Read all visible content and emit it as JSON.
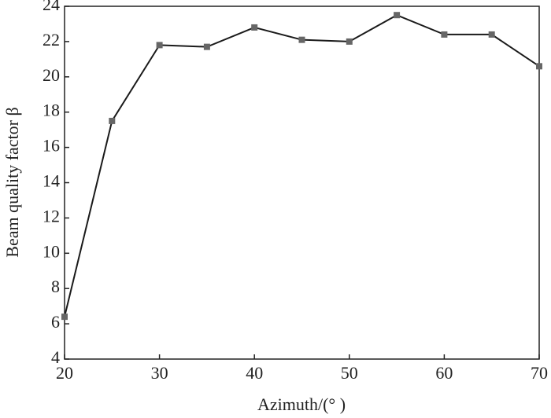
{
  "chart_data": {
    "type": "line",
    "x_label": "Azimuth/(°  )",
    "y_label": "Beam quality factor β",
    "x": [
      20,
      25,
      30,
      35,
      40,
      45,
      50,
      55,
      60,
      65,
      70
    ],
    "series": [
      {
        "color": "#1a1a1a",
        "values": [
          6.4,
          17.5,
          21.8,
          21.7,
          22.8,
          22.1,
          22.0,
          23.5,
          22.4,
          22.4,
          20.6
        ]
      }
    ],
    "xlim": [
      20,
      70
    ],
    "xticks": [
      20,
      30,
      40,
      50,
      60,
      70
    ],
    "ylim": [
      4,
      24
    ],
    "yticks": [
      4,
      6,
      8,
      10,
      12,
      14,
      16,
      18,
      20,
      22,
      24
    ]
  }
}
